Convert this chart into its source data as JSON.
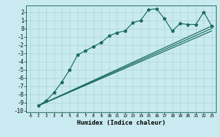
{
  "title": "",
  "xlabel": "Humidex (Indice chaleur)",
  "background_color": "#c8eaf0",
  "grid_color": "#b0d8d8",
  "line_color": "#1a6b5a",
  "xlim": [
    -0.5,
    23.5
  ],
  "ylim": [
    -10.2,
    2.8
  ],
  "yticks": [
    2,
    1,
    0,
    -1,
    -2,
    -3,
    -4,
    -5,
    -6,
    -7,
    -8,
    -9,
    -10
  ],
  "xticks": [
    0,
    1,
    2,
    3,
    4,
    5,
    6,
    7,
    8,
    9,
    10,
    11,
    12,
    13,
    14,
    15,
    16,
    17,
    18,
    19,
    20,
    21,
    22,
    23
  ],
  "curve1_x": [
    1,
    2,
    3,
    4,
    5,
    6,
    7,
    8,
    9,
    10,
    11,
    12,
    13,
    14,
    15,
    16,
    17,
    18,
    19,
    20,
    21,
    22,
    23
  ],
  "curve1_y": [
    -9.4,
    -8.8,
    -7.8,
    -6.5,
    -5.0,
    -3.2,
    -2.7,
    -2.2,
    -1.7,
    -0.9,
    -0.5,
    -0.3,
    0.7,
    1.0,
    2.3,
    2.4,
    1.2,
    -0.3,
    0.6,
    0.5,
    0.5,
    2.0,
    0.3
  ],
  "line2_x": [
    1,
    23
  ],
  "line2_y": [
    -9.4,
    0.3
  ],
  "line3_x": [
    1,
    23
  ],
  "line3_y": [
    -9.4,
    -0.3
  ],
  "line4_x": [
    1,
    23
  ],
  "line4_y": [
    -9.4,
    0.0
  ]
}
